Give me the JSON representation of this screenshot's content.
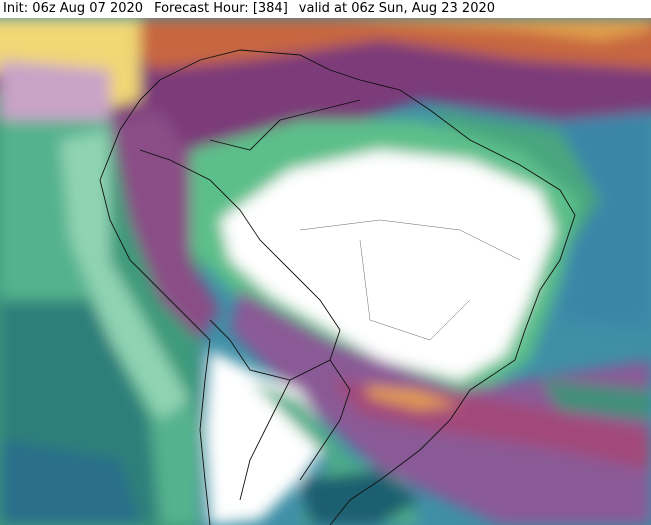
{
  "header": {
    "init": "Init: 06z Aug 07 2020",
    "forecast_hour": "Forecast Hour: [384]",
    "valid": "valid at 06z Sun, Aug 23 2020"
  }
}
